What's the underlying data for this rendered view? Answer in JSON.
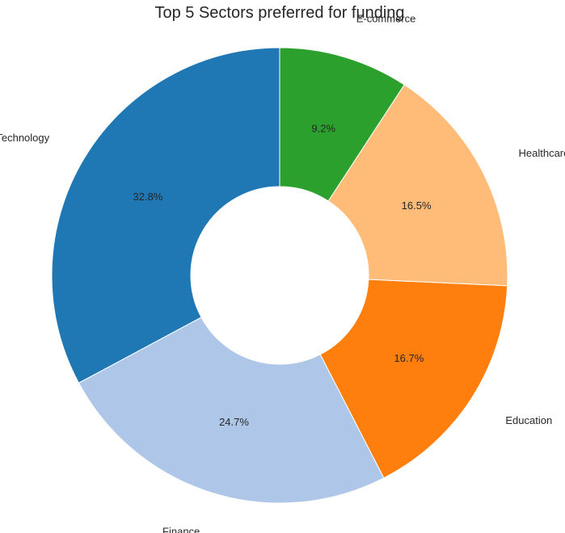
{
  "chart_data": {
    "type": "pie",
    "variant": "donut",
    "title": "Top 5 Sectors preferred for funding",
    "categories": [
      "Technology",
      "Finance",
      "Education",
      "Healthcare",
      "E-commerce"
    ],
    "values": [
      32.8,
      24.7,
      16.7,
      16.5,
      9.2
    ],
    "value_labels": [
      "32.8%",
      "24.7%",
      "16.7%",
      "16.5%",
      "9.2%"
    ],
    "colors": [
      "#1f77b4",
      "#aec7e8",
      "#ff7f0e",
      "#ffbb78",
      "#2ca02c"
    ],
    "start_angle_deg": 90,
    "direction": "counterclockwise",
    "legend": "none"
  }
}
